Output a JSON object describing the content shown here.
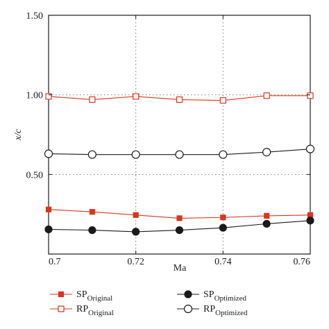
{
  "colors": {
    "original": "#d9361e",
    "optimized": "#1a1a1a",
    "grid": "#7a7a7a",
    "axis": "#1a1a1a"
  },
  "chart_data": {
    "type": "line",
    "title": "",
    "xlabel": "Ma",
    "ylabel": "x/c",
    "xlim": [
      0.7,
      0.76
    ],
    "ylim": [
      0.0,
      1.5
    ],
    "x_ticks": [
      "0.7",
      "0.72",
      "0.74",
      "0.76"
    ],
    "x_tick_values": [
      0.7,
      0.72,
      0.74,
      0.76
    ],
    "y_ticks": [
      "0.50",
      "1.00",
      "1.50"
    ],
    "y_tick_values": [
      0.5,
      1.0,
      1.5
    ],
    "grid": "dotted, at ticks",
    "x": [
      0.7,
      0.71,
      0.72,
      0.73,
      0.74,
      0.75,
      0.76
    ],
    "series": [
      {
        "name": "SP",
        "subscript": "Original",
        "marker": "filled-square",
        "values": [
          0.28,
          0.265,
          0.245,
          0.225,
          0.23,
          0.24,
          0.245
        ]
      },
      {
        "name": "RP",
        "subscript": "Original",
        "marker": "open-square",
        "values": [
          0.99,
          0.97,
          0.99,
          0.97,
          0.965,
          0.995,
          0.995
        ]
      },
      {
        "name": "SP",
        "subscript": "Optimized",
        "marker": "filled-circle",
        "values": [
          0.155,
          0.15,
          0.14,
          0.15,
          0.165,
          0.19,
          0.21
        ]
      },
      {
        "name": "RP",
        "subscript": "Optimized",
        "marker": "open-circle",
        "values": [
          0.63,
          0.625,
          0.625,
          0.625,
          0.625,
          0.64,
          0.66
        ]
      }
    ],
    "legend_position": "bottom"
  }
}
